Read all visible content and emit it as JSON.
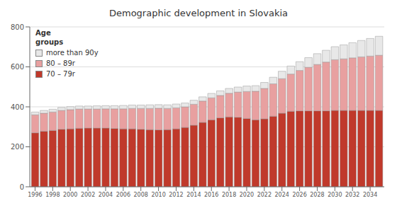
{
  "chart_data": {
    "type": "bar",
    "title": "Demographic development in Slovakia",
    "stacked": true,
    "grid": true,
    "legend": "upper left",
    "legend_title": "Age\ngroups",
    "x": [
      1996,
      1997,
      1998,
      1999,
      2000,
      2001,
      2002,
      2003,
      2004,
      2005,
      2006,
      2007,
      2008,
      2009,
      2010,
      2011,
      2012,
      2013,
      2014,
      2015,
      2016,
      2017,
      2018,
      2019,
      2020,
      2021,
      2022,
      2023,
      2024,
      2025,
      2026,
      2027,
      2028,
      2029,
      2030,
      2031,
      2032,
      2033,
      2034,
      2035
    ],
    "xlim": [
      1995.4,
      2035.6
    ],
    "xticks": [
      1996,
      1998,
      2000,
      2002,
      2004,
      2006,
      2008,
      2010,
      2012,
      2014,
      2016,
      2018,
      2020,
      2022,
      2024,
      2026,
      2028,
      2030,
      2032,
      2034
    ],
    "ylim": [
      0,
      800
    ],
    "yticks": [
      0,
      200,
      400,
      600,
      800
    ],
    "series": [
      {
        "name": "70 – 79r",
        "color": "#c0392b",
        "values": [
          270,
          278,
          282,
          288,
          290,
          293,
          294,
          294,
          294,
          292,
          290,
          290,
          288,
          286,
          285,
          286,
          290,
          297,
          308,
          322,
          335,
          345,
          350,
          348,
          342,
          335,
          340,
          353,
          368,
          378,
          380,
          380,
          380,
          380,
          382,
          382,
          382,
          382,
          382,
          382
        ]
      },
      {
        "name": "80 – 89r",
        "color": "#e8a0a0",
        "values": [
          90,
          90,
          92,
          94,
          96,
          96,
          95,
          95,
          96,
          98,
          100,
          102,
          104,
          106,
          108,
          106,
          105,
          103,
          105,
          107,
          110,
          112,
          118,
          126,
          135,
          143,
          152,
          162,
          173,
          186,
          202,
          218,
          232,
          244,
          254,
          258,
          263,
          268,
          272,
          276
        ]
      },
      {
        "name": "more than 90y",
        "color": "#e8e8e8",
        "values": [
          14,
          14,
          14,
          15,
          15,
          15,
          15,
          16,
          16,
          16,
          17,
          17,
          17,
          18,
          18,
          18,
          19,
          19,
          20,
          21,
          22,
          23,
          24,
          25,
          27,
          28,
          30,
          33,
          37,
          40,
          44,
          48,
          54,
          59,
          65,
          70,
          76,
          82,
          88,
          95
        ]
      }
    ]
  }
}
